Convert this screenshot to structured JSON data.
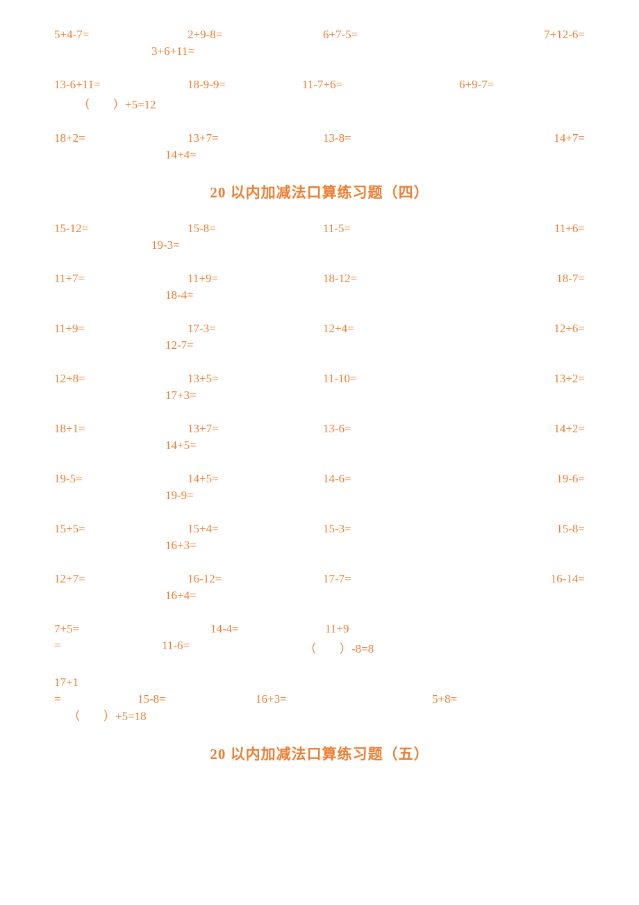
{
  "text_color": "#ed7d31",
  "bg_color": "#ffffff",
  "font_family_main": "SimSun",
  "body_fontsize": 17,
  "heading_fontsize": 21,
  "top_section": {
    "rows": [
      {
        "c1": "5+4-7=",
        "c2": "2+9-8=",
        "c3": "6+7-5=",
        "c4": "7+12-6=",
        "extra": "3+6+11=",
        "extra_class": "second-indent-a"
      },
      {
        "c1": "13-6+11=",
        "c2": "18-9-9=",
        "c3": "11-7+6=",
        "c4": "6+9-7=",
        "extra": "（　　）+5=12",
        "extra_class": "second-indent-c",
        "c3_shift": -30,
        "c4_shift": -60
      },
      {
        "c1": "18+2=",
        "c2": "13+7=",
        "c3": "13-8=",
        "c4": "14+7=",
        "extra": "14+4=",
        "extra_class": "second-indent-b"
      }
    ]
  },
  "heading1": "20 以内加减法口算练习题（四）",
  "section4": {
    "rows": [
      {
        "c1": "15-12=",
        "c2": "15-8=",
        "c3": "11-5=",
        "c4": "11+6=",
        "extra": "19-3=",
        "extra_class": "second-indent-a"
      },
      {
        "c1": "11+7=",
        "c2": "11+9=",
        "c3": "18-12=",
        "c4": "18-7=",
        "extra": "18-4=",
        "extra_class": "second-indent-b"
      },
      {
        "c1": "11+9=",
        "c2": "17-3=",
        "c3": "12+4=",
        "c4": "12+6=",
        "extra": "12-7=",
        "extra_class": "second-indent-b"
      },
      {
        "c1": "12+8=",
        "c2": "13+5=",
        "c3": "11-10=",
        "c4": "13+2=",
        "extra": "17+3=",
        "extra_class": "second-indent-b"
      },
      {
        "c1": "18+1=",
        "c2": "13+7=",
        "c3": "13-6=",
        "c4": "14+2=",
        "extra": "14+5=",
        "extra_class": "second-indent-b"
      },
      {
        "c1": "19-5=",
        "c2": "14+5=",
        "c3": "14-6=",
        "c4": "19-6=",
        "extra": "19-9=",
        "extra_class": "second-indent-b"
      },
      {
        "c1": "15+5=",
        "c2": "15+4=",
        "c3": "15-3=",
        "c4": "15-8=",
        "extra": "16+3=",
        "extra_class": "second-indent-b"
      },
      {
        "c1": "12+7=",
        "c2": "16-12=",
        "c3": "17-7=",
        "c4": "16-14=",
        "extra": "16+4=",
        "extra_class": "second-indent-b"
      }
    ],
    "special1": {
      "line1_c1": "7+5=",
      "line1_c2": "14-4=",
      "line1_c3": "11+9",
      "line2_c1": "=",
      "line2_c2": "11-6=",
      "line2_c3": "（　　）-8=8"
    },
    "special2": {
      "line1_c1": "17+1",
      "line2_c1": "=",
      "line2_c2": "15-8=",
      "line2_c3": "16+3=",
      "line2_c4": "5+8=",
      "line3": "（　　）+5=18"
    }
  },
  "heading2": "20 以内加减法口算练习题（五）"
}
